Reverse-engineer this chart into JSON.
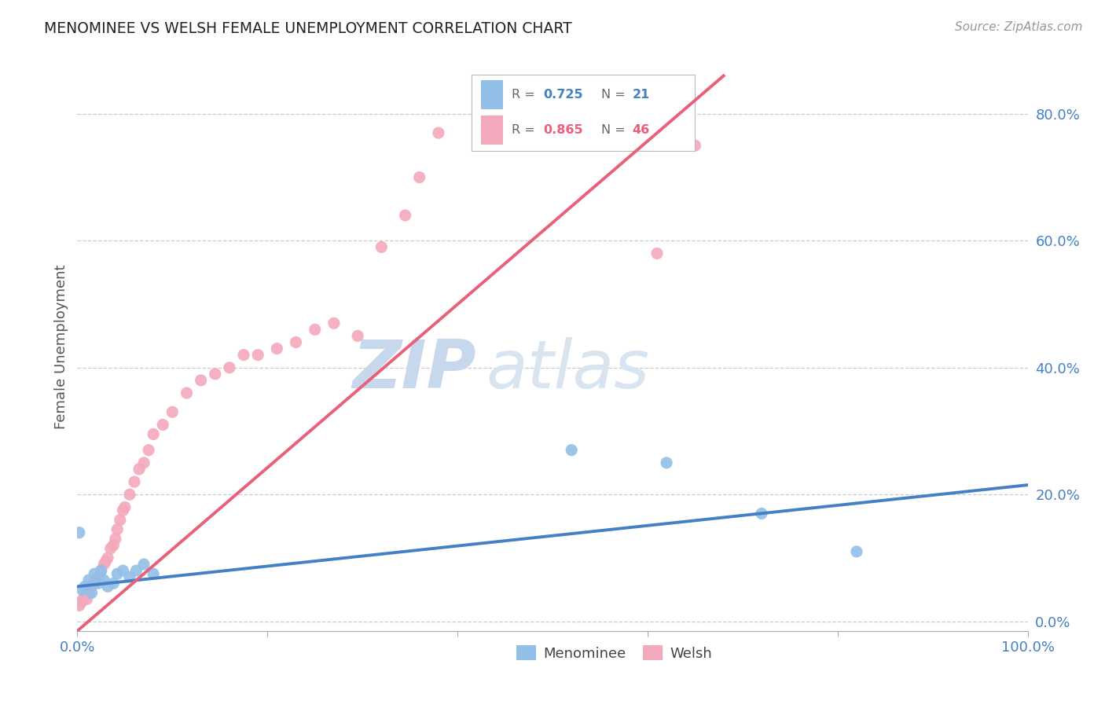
{
  "title": "MENOMINEE VS WELSH FEMALE UNEMPLOYMENT CORRELATION CHART",
  "source": "Source: ZipAtlas.com",
  "ylabel": "Female Unemployment",
  "xmin": 0.0,
  "xmax": 1.0,
  "ymin": -0.015,
  "ymax": 0.88,
  "menominee_R": 0.725,
  "menominee_N": 21,
  "welsh_R": 0.865,
  "welsh_N": 46,
  "menominee_color": "#92BFE8",
  "welsh_color": "#F4A8BC",
  "menominee_line_color": "#4480C4",
  "welsh_line_color": "#E8607A",
  "background_color": "#FFFFFF",
  "grid_color": "#CCCCCC",
  "watermark_zip": "ZIP",
  "watermark_atlas": "atlas",
  "ytick_vals": [
    0.0,
    0.2,
    0.4,
    0.6,
    0.8
  ],
  "ytick_labels": [
    "0.0%",
    "20.0%",
    "40.0%",
    "60.0%",
    "80.0%"
  ],
  "menominee_x": [
    0.002,
    0.005,
    0.008,
    0.012,
    0.015,
    0.018,
    0.022,
    0.025,
    0.028,
    0.032,
    0.038,
    0.042,
    0.048,
    0.055,
    0.062,
    0.07,
    0.08,
    0.52,
    0.62,
    0.72,
    0.82
  ],
  "menominee_y": [
    0.14,
    0.05,
    0.055,
    0.065,
    0.045,
    0.075,
    0.06,
    0.08,
    0.065,
    0.055,
    0.06,
    0.075,
    0.08,
    0.07,
    0.08,
    0.09,
    0.075,
    0.27,
    0.25,
    0.17,
    0.11
  ],
  "welsh_x": [
    0.002,
    0.004,
    0.006,
    0.008,
    0.01,
    0.012,
    0.015,
    0.018,
    0.02,
    0.022,
    0.025,
    0.028,
    0.03,
    0.032,
    0.035,
    0.038,
    0.04,
    0.042,
    0.045,
    0.048,
    0.05,
    0.055,
    0.06,
    0.065,
    0.07,
    0.075,
    0.08,
    0.09,
    0.1,
    0.115,
    0.13,
    0.145,
    0.16,
    0.175,
    0.19,
    0.21,
    0.23,
    0.25,
    0.27,
    0.295,
    0.32,
    0.345,
    0.36,
    0.38,
    0.61,
    0.65
  ],
  "welsh_y": [
    0.025,
    0.03,
    0.035,
    0.04,
    0.035,
    0.045,
    0.055,
    0.06,
    0.065,
    0.07,
    0.08,
    0.09,
    0.095,
    0.1,
    0.115,
    0.12,
    0.13,
    0.145,
    0.16,
    0.175,
    0.18,
    0.2,
    0.22,
    0.24,
    0.25,
    0.27,
    0.295,
    0.31,
    0.33,
    0.36,
    0.38,
    0.39,
    0.4,
    0.42,
    0.42,
    0.43,
    0.44,
    0.46,
    0.47,
    0.45,
    0.59,
    0.64,
    0.7,
    0.77,
    0.58,
    0.75
  ],
  "menominee_trendline_x": [
    0.0,
    1.0
  ],
  "menominee_trendline_y": [
    0.055,
    0.215
  ],
  "welsh_trendline_x": [
    0.0,
    0.68
  ],
  "welsh_trendline_y": [
    -0.015,
    0.86
  ]
}
